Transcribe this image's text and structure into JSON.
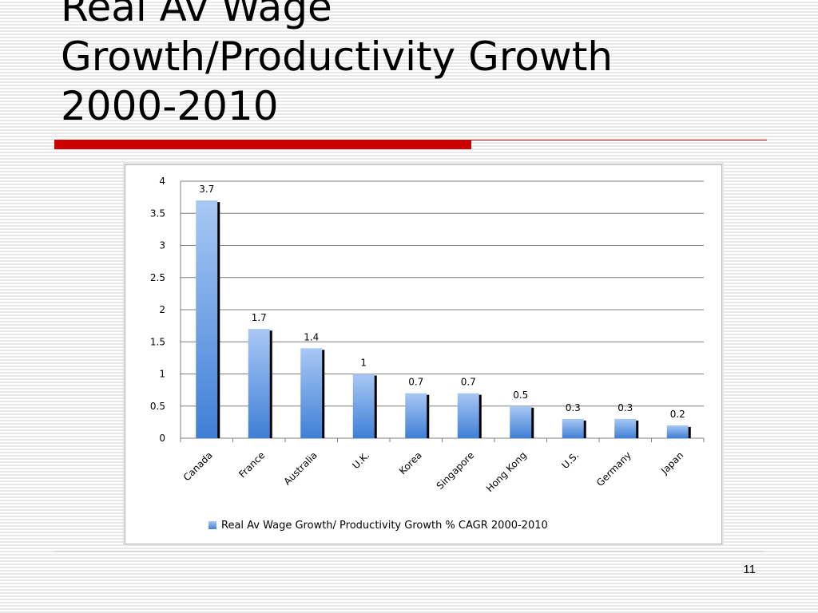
{
  "slide": {
    "title_lines": [
      "Real Av Wage",
      "Growth/Productivity Growth",
      "2000-2010"
    ],
    "page_number": "11"
  },
  "chart_data": {
    "type": "bar",
    "categories": [
      "Canada",
      "France",
      "Australia",
      "U.K.",
      "Korea",
      "Singapore",
      "Hong Kong",
      "U.S.",
      "Germany",
      "Japan"
    ],
    "series": [
      {
        "name": "Real Av Wage Growth/ Productivity Growth % CAGR 2000-2010",
        "values": [
          3.7,
          1.7,
          1.4,
          1,
          0.7,
          0.7,
          0.5,
          0.3,
          0.3,
          0.2
        ],
        "labels": [
          "3.7",
          "1.7",
          "1.4",
          "1",
          "0.7",
          "0.7",
          "0.5",
          "0.3",
          "0.3",
          "0.2"
        ]
      }
    ],
    "ylim": [
      0,
      4
    ],
    "yticks": [
      "0",
      "0.5",
      "1",
      "1.5",
      "2",
      "2.5",
      "3",
      "3.5",
      "4"
    ],
    "grid": true,
    "legend_position": "bottom",
    "colors": {
      "bar_top": "#a9c8f4",
      "bar_bottom": "#3f7fd6",
      "bar_shadow": "#000000",
      "grid": "#7f7f7f"
    }
  }
}
